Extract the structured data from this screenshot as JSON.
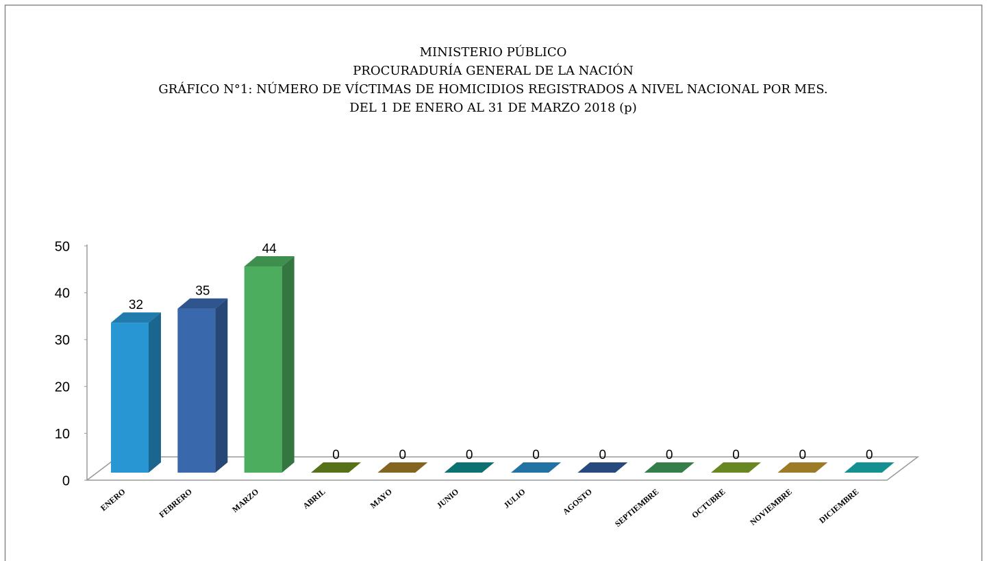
{
  "chart_data": {
    "type": "bar3d",
    "title": [
      "MINISTERIO PÚBLICO",
      "PROCURADURÍA GENERAL DE LA NACIÓN",
      "GRÁFICO N°1: NÚMERO DE VÍCTIMAS DE HOMICIDIOS REGISTRADOS A NIVEL NACIONAL POR MES.",
      "DEL 1 DE ENERO AL 31 DE MARZO 2018 (p)"
    ],
    "categories": [
      "ENERO",
      "FEBRERO",
      "MARZO",
      "ABRIL",
      "MAYO",
      "JUNIO",
      "JULIO",
      "AGOSTO",
      "SEPTIEMBRE",
      "OCTUBRE",
      "NOVIEMBRE",
      "DICIEMBRE"
    ],
    "values": [
      32,
      35,
      44,
      0,
      0,
      0,
      0,
      0,
      0,
      0,
      0,
      0
    ],
    "colors": [
      "#2896d3",
      "#3a68ad",
      "#4cad5e",
      "#6a8a1f",
      "#a07a27",
      "#0f8a8a",
      "#2a8bc8",
      "#2e5a9a",
      "#3f9a5a",
      "#7fa42a",
      "#c0962e",
      "#1ab0b0"
    ],
    "ylim": [
      0,
      50
    ],
    "yticks": [
      0,
      10,
      20,
      30,
      40,
      50
    ],
    "grid": false
  }
}
